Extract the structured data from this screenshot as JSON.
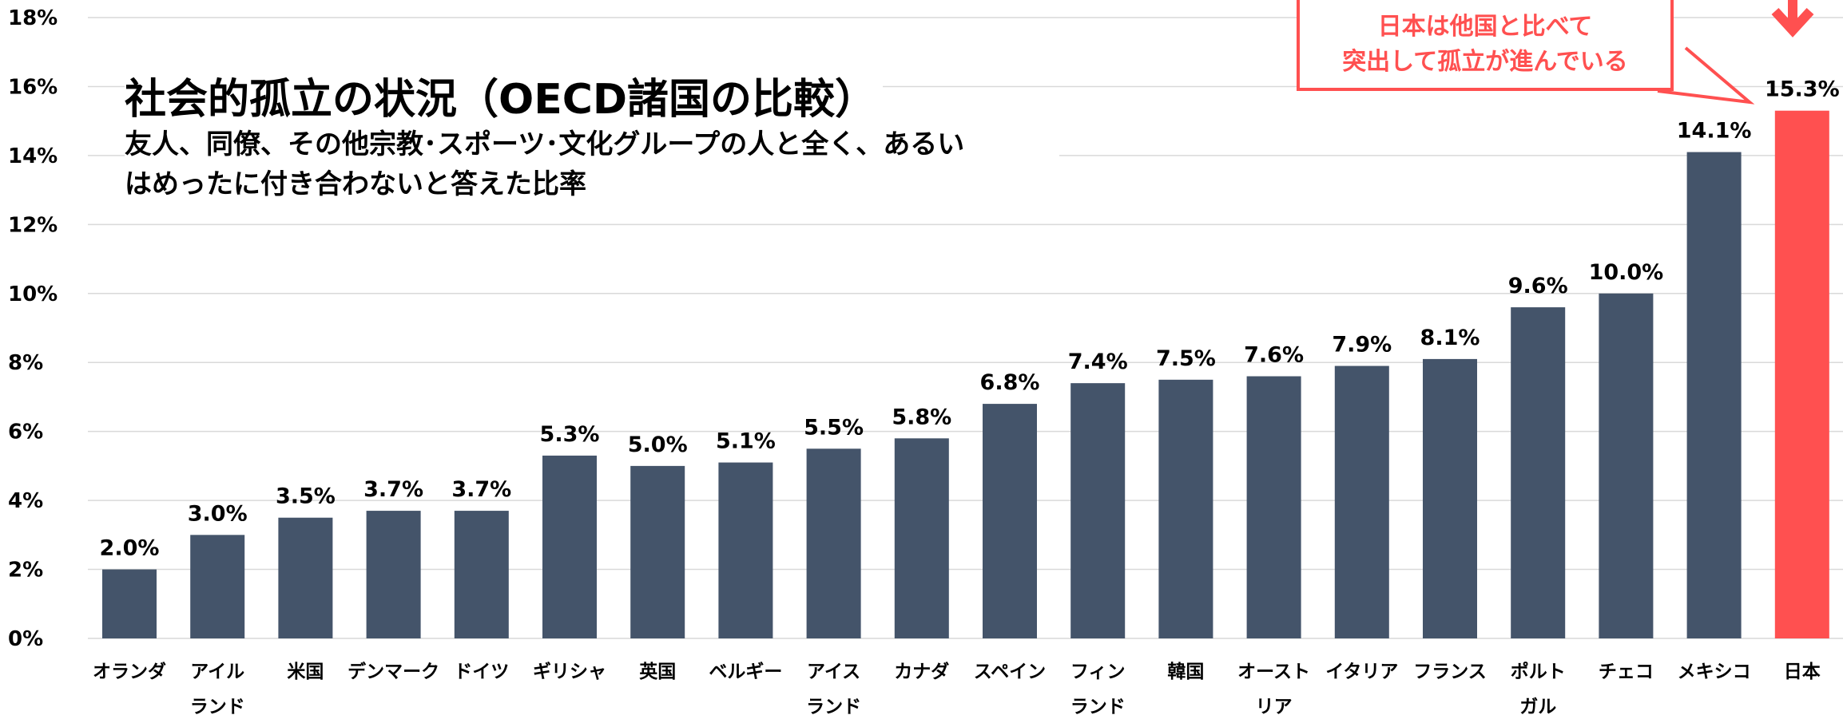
{
  "chart_data": {
    "type": "bar",
    "title": "社会的孤立の状況（OECD諸国の比較）",
    "subtitle": "友人、同僚、その他宗教･スポーツ･文化グループの人と全く、あるい\nはめったに付き合わないと答えた比率",
    "annotation": "日本は他国と比べて\n突出して孤立が進んでいる",
    "categories": [
      "オランダ",
      "アイル\nランド",
      "米国",
      "デンマーク",
      "ドイツ",
      "ギリシャ",
      "英国",
      "ベルギー",
      "アイス\nランド",
      "カナダ",
      "スペイン",
      "フィン\nランド",
      "韓国",
      "オースト\nリア",
      "イタリア",
      "フランス",
      "ポルト\nガル",
      "チェコ",
      "メキシコ",
      "日本"
    ],
    "values": [
      2.0,
      3.0,
      3.5,
      3.7,
      3.7,
      5.3,
      5.0,
      5.1,
      5.5,
      5.8,
      6.8,
      7.4,
      7.5,
      7.6,
      7.9,
      8.1,
      9.6,
      10.0,
      14.1,
      15.3
    ],
    "value_labels": [
      "2.0%",
      "3.0%",
      "3.5%",
      "3.7%",
      "3.7%",
      "5.3%",
      "5.0%",
      "5.1%",
      "5.5%",
      "5.8%",
      "6.8%",
      "7.4%",
      "7.5%",
      "7.6%",
      "7.9%",
      "8.1%",
      "9.6%",
      "10.0%",
      "14.1%",
      "15.3%"
    ],
    "colors": [
      "#44546a",
      "#44546a",
      "#44546a",
      "#44546a",
      "#44546a",
      "#44546a",
      "#44546a",
      "#44546a",
      "#44546a",
      "#44546a",
      "#44546a",
      "#44546a",
      "#44546a",
      "#44546a",
      "#44546a",
      "#44546a",
      "#44546a",
      "#44546a",
      "#44546a",
      "#ff5050"
    ],
    "ylim": [
      0,
      18
    ],
    "yticks": [
      {
        "value": 0,
        "label": "0%"
      },
      {
        "value": 2,
        "label": "2%"
      },
      {
        "value": 4,
        "label": "4%"
      },
      {
        "value": 6,
        "label": "6%"
      },
      {
        "value": 8,
        "label": "8%"
      },
      {
        "value": 10,
        "label": "10%"
      },
      {
        "value": 12,
        "label": "12%"
      },
      {
        "value": 14,
        "label": "14%"
      },
      {
        "value": 16,
        "label": "16%"
      },
      {
        "value": 18,
        "label": "18%"
      }
    ],
    "grid": true
  }
}
